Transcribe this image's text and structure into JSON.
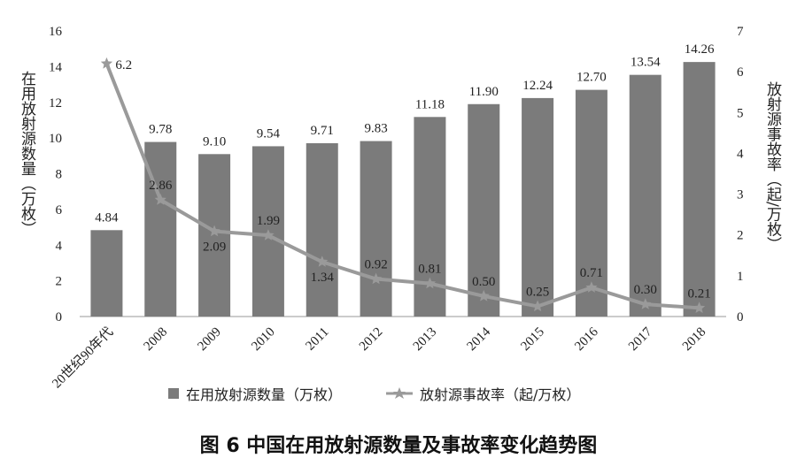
{
  "chart_data": {
    "type": "bar+line",
    "categories": [
      "20世纪90年代",
      "2008",
      "2009",
      "2010",
      "2011",
      "2012",
      "2013",
      "2014",
      "2015",
      "2016",
      "2017",
      "2018"
    ],
    "series": [
      {
        "name": "在用放射源数量（万枚）",
        "type": "bar",
        "axis": "left",
        "color": "#7b7b7b",
        "values": [
          4.84,
          9.78,
          9.1,
          9.54,
          9.71,
          9.83,
          11.18,
          11.9,
          12.24,
          12.7,
          13.54,
          14.26
        ],
        "labels": [
          "4.84",
          "9.78",
          "9.10",
          "9.54",
          "9.71",
          "9.83",
          "11.18",
          "11.90",
          "12.24",
          "12.70",
          "13.54",
          "14.26"
        ]
      },
      {
        "name": "放射源事故率（起/万枚）",
        "type": "line",
        "axis": "right",
        "color": "#9a9a9a",
        "values": [
          6.2,
          2.86,
          2.09,
          1.99,
          1.34,
          0.92,
          0.81,
          0.5,
          0.25,
          0.71,
          0.3,
          0.21
        ],
        "labels": [
          "6.2",
          "2.86",
          "2.09",
          "1.99",
          "1.34",
          "0.92",
          "0.81",
          "0.50",
          "0.25",
          "0.71",
          "0.30",
          "0.21"
        ]
      }
    ],
    "y_left": {
      "label": "在用放射源数量（万枚）",
      "lim": [
        0,
        16
      ],
      "ticks": [
        "0",
        "2",
        "4",
        "6",
        "8",
        "10",
        "12",
        "14",
        "16"
      ]
    },
    "y_right": {
      "label": "放射源事故率（起/万枚）",
      "lim": [
        0,
        7
      ],
      "ticks": [
        "0",
        "1",
        "2",
        "3",
        "4",
        "5",
        "6",
        "7"
      ]
    },
    "grid": false,
    "legend_position": "bottom",
    "caption": "图 6    中国在用放射源数量及事故率变化趋势图"
  }
}
